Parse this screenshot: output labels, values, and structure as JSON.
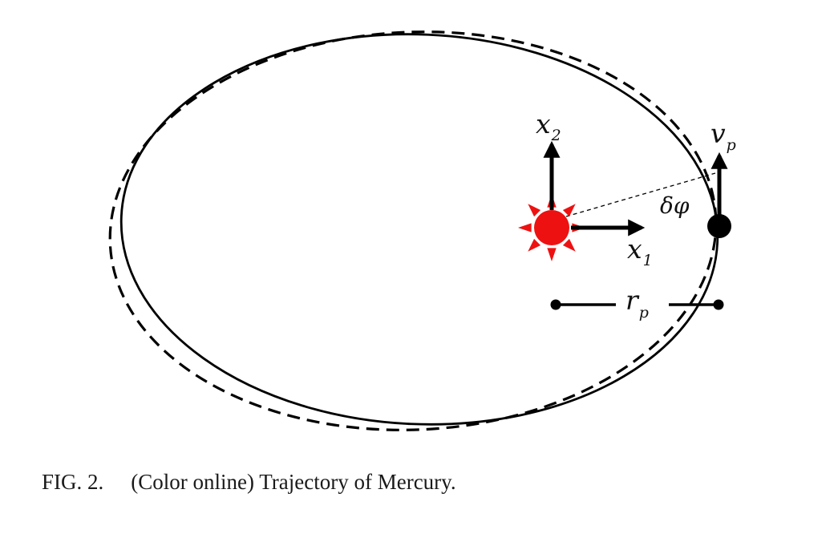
{
  "labels": {
    "x1_base": "x",
    "x1_sub": "1",
    "x2_base": "x",
    "x2_sub": "2",
    "vp_base": "v",
    "vp_sub": "p",
    "rp_base": "r",
    "rp_sub": "p",
    "dphi": "δφ"
  },
  "caption": {
    "fig_label": "FIG. 2.",
    "text": "(Color online) Trajectory of Mercury."
  },
  "colors": {
    "sun": "#ee1111",
    "ink": "#000000"
  }
}
